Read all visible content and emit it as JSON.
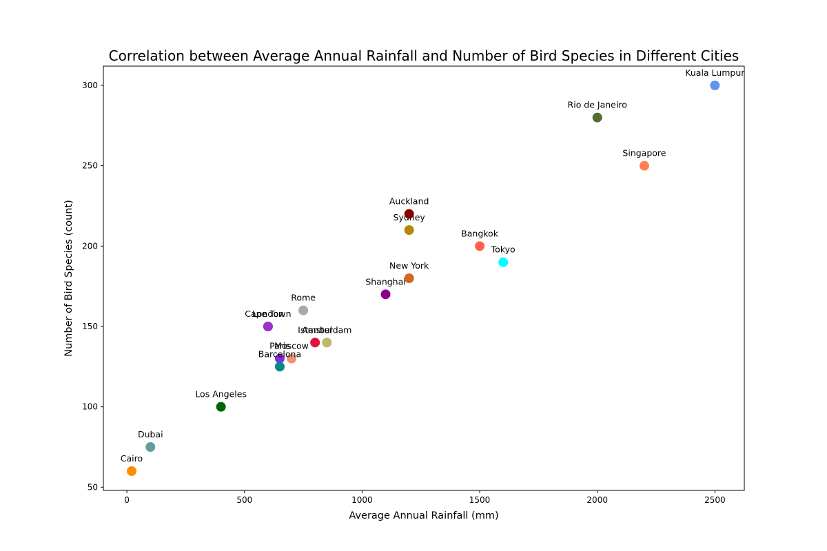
{
  "chart_data": {
    "type": "scatter",
    "title": "Correlation between Average Annual Rainfall and Number of Bird Species in Different Cities",
    "xlabel": "Average Annual Rainfall (mm)",
    "ylabel": "Number of Bird Species (count)",
    "xlim": [
      -100,
      2625
    ],
    "ylim": [
      48,
      312
    ],
    "xticks": [
      0,
      500,
      1000,
      1500,
      2000,
      2500
    ],
    "yticks": [
      50,
      100,
      150,
      200,
      250,
      300
    ],
    "grid": false,
    "legend": "none",
    "points": [
      {
        "label": "New York",
        "x": 1200,
        "y": 180,
        "color": "#d2691e"
      },
      {
        "label": "London",
        "x": 600,
        "y": 150,
        "color": "#9932cc"
      },
      {
        "label": "Paris",
        "x": 650,
        "y": 130,
        "color": "#8a2be2"
      },
      {
        "label": "Tokyo",
        "x": 1600,
        "y": 190,
        "color": "#00ffff"
      },
      {
        "label": "Sydney",
        "x": 1200,
        "y": 210,
        "color": "#b8860b"
      },
      {
        "label": "Rio de Janeiro",
        "x": 2000,
        "y": 280,
        "color": "#556b2f"
      },
      {
        "label": "Cairo",
        "x": 20,
        "y": 60,
        "color": "#ff8c00"
      },
      {
        "label": "Moscow",
        "x": 700,
        "y": 130,
        "color": "#e9967a"
      },
      {
        "label": "Cape Town",
        "x": 600,
        "y": 150,
        "color": "#9932cc"
      },
      {
        "label": "Shanghai",
        "x": 1100,
        "y": 170,
        "color": "#8b008b"
      },
      {
        "label": "Los Angeles",
        "x": 400,
        "y": 100,
        "color": "#006400"
      },
      {
        "label": "Dubai",
        "x": 100,
        "y": 75,
        "color": "#5f9ea0"
      },
      {
        "label": "Bangkok",
        "x": 1500,
        "y": 200,
        "color": "#ff6347"
      },
      {
        "label": "Istanbul",
        "x": 800,
        "y": 140,
        "color": "#dc143c"
      },
      {
        "label": "Amsterdam",
        "x": 850,
        "y": 140,
        "color": "#bdb76b"
      },
      {
        "label": "Singapore",
        "x": 2200,
        "y": 250,
        "color": "#ff7f50"
      },
      {
        "label": "Auckland",
        "x": 1200,
        "y": 220,
        "color": "#8b0000"
      },
      {
        "label": "Rome",
        "x": 750,
        "y": 160,
        "color": "#a9a9a9"
      },
      {
        "label": "Barcelona",
        "x": 650,
        "y": 125,
        "color": "#008b8b"
      },
      {
        "label": "Kuala Lumpur",
        "x": 2500,
        "y": 300,
        "color": "#6495ed"
      }
    ]
  }
}
